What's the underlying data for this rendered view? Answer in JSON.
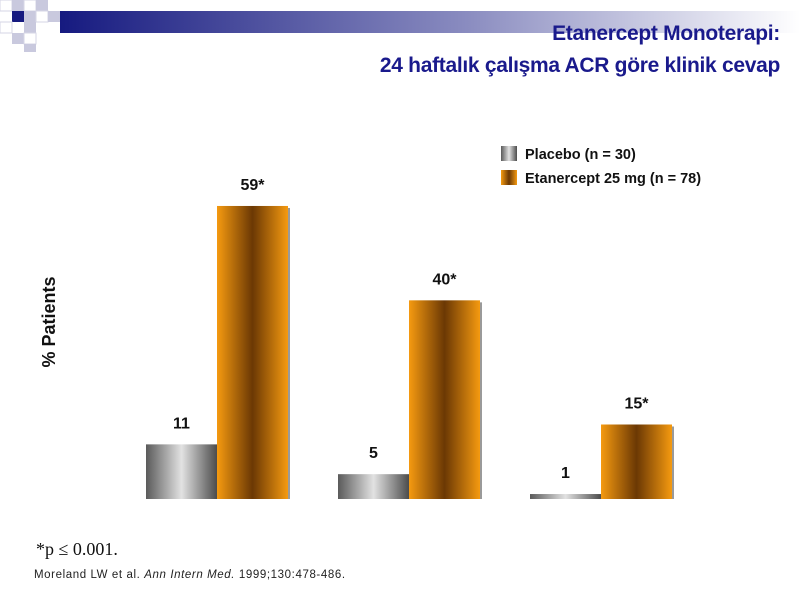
{
  "colors": {
    "title": "#1a1a8c",
    "placebo_light": "#e2e2e2",
    "placebo_dark": "#4c4c4c",
    "etanercept_light": "#f59a10",
    "etanercept_dark": "#6b3804",
    "header_band_dark": "#161a80"
  },
  "slide": {
    "title_line1": "Etanercept Monoterapi:",
    "title_line2": "24 haftalık çalışma ACR  göre klinik cevap",
    "footnote_marker": "*",
    "footnote_text": "p ≤ 0.001.",
    "citation_authors": "Moreland LW et al. ",
    "citation_journal": "Ann Intern Med.",
    "citation_details": " 1999;130:478-486."
  },
  "chart_data": {
    "type": "bar",
    "title": "",
    "xlabel": "",
    "ylabel": "% Patients",
    "categories": [
      "",
      "",
      ""
    ],
    "ylim": [
      0,
      60
    ],
    "legend_position": "top-right",
    "grid": false,
    "series": [
      {
        "name": "Placebo (n = 30)",
        "values": [
          11,
          5,
          1
        ],
        "labels": [
          "11",
          "5",
          "1"
        ],
        "color": "#8a8a8a"
      },
      {
        "name": "Etanercept 25 mg (n = 78)",
        "values": [
          59,
          40,
          15
        ],
        "labels": [
          "59*",
          "40*",
          "15*"
        ],
        "color": "#d07e0a"
      }
    ]
  }
}
